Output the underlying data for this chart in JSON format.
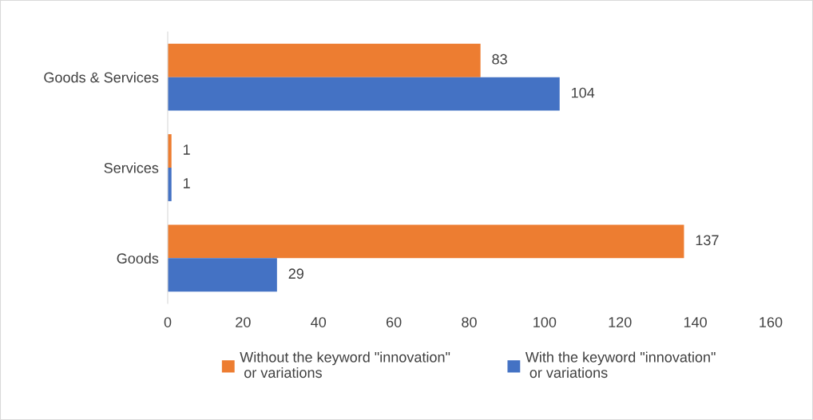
{
  "chart_data": {
    "type": "bar",
    "orientation": "horizontal",
    "categories": [
      "Goods & Services",
      "Services",
      "Goods"
    ],
    "series": [
      {
        "name": "Without the keyword \"innovation\"\n or variations",
        "color": "#ed7d31",
        "values": [
          83,
          1,
          137
        ]
      },
      {
        "name": "With the keyword \"innovation\"\n or variations",
        "color": "#4472c4",
        "values": [
          104,
          1,
          29
        ]
      }
    ],
    "xlim": [
      0,
      160
    ],
    "xticks": [
      0,
      20,
      40,
      60,
      80,
      100,
      120,
      140,
      160
    ],
    "grid": false,
    "legend": "bottom",
    "data_labels": true
  }
}
